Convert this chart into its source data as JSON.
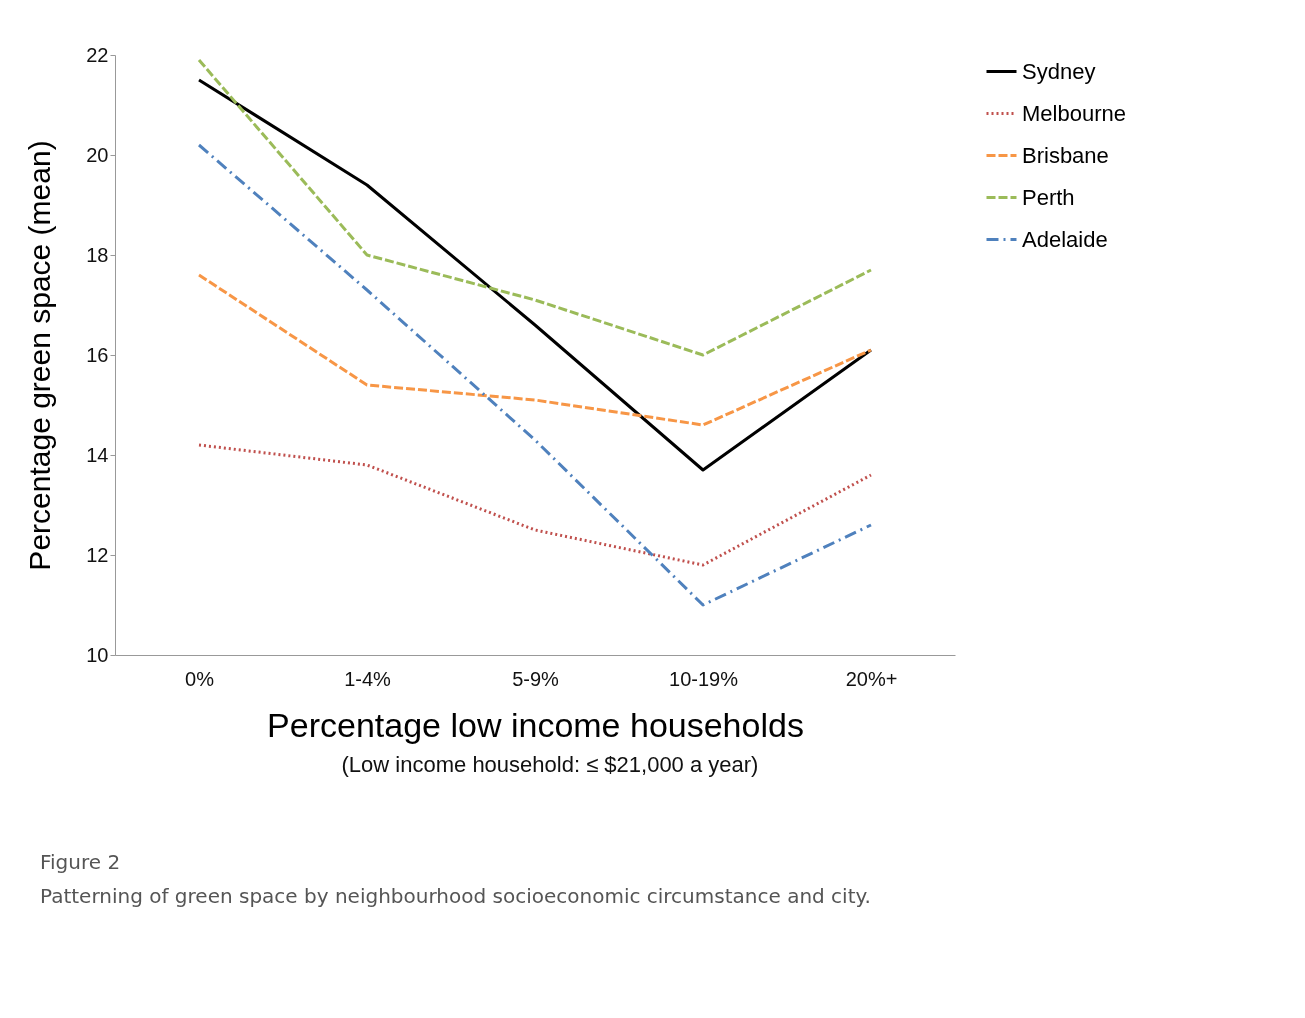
{
  "chart_data": {
    "type": "line",
    "xlabel": "Percentage low income households",
    "ylabel": "Percentage green space (mean)",
    "categories": [
      "0%",
      "1-4%",
      "5-9%",
      "10-19%",
      "20%+"
    ],
    "series": [
      {
        "name": "Sydney",
        "color": "#000000",
        "line_style": "solid",
        "values": [
          21.5,
          19.4,
          16.6,
          13.7,
          16.1
        ]
      },
      {
        "name": "Melbourne",
        "color": "#c0504d",
        "line_style": "dotted",
        "values": [
          14.2,
          13.8,
          12.5,
          11.8,
          13.6
        ]
      },
      {
        "name": "Brisbane",
        "color": "#f79646",
        "line_style": "dashed",
        "values": [
          17.6,
          15.4,
          15.1,
          14.6,
          16.1
        ]
      },
      {
        "name": "Perth",
        "color": "#9bbb59",
        "line_style": "dashed",
        "values": [
          21.9,
          18.0,
          17.1,
          16.0,
          17.7
        ]
      },
      {
        "name": "Adelaide",
        "color": "#4f81bd",
        "line_style": "dashdot",
        "values": [
          20.2,
          17.3,
          14.3,
          11.0,
          12.6
        ]
      }
    ],
    "ylim": [
      10,
      22
    ],
    "yticks": [
      10,
      12,
      14,
      16,
      18,
      20,
      22
    ],
    "grid": false,
    "legend": "right",
    "marker": "none",
    "annotations": [
      "(Low income household: ≤ $21,000 a year)",
      "Figure 2",
      "Patterning of green space by neighbourhood socioeconomic circumstance and city."
    ]
  }
}
